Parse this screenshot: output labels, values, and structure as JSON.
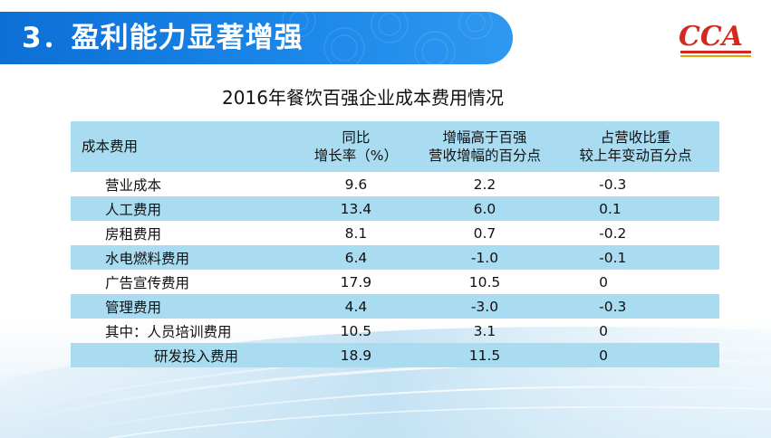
{
  "header": {
    "title": "3．盈利能力显著增强"
  },
  "logo": {
    "text": "CCA",
    "colors": {
      "text": "#d42a1e",
      "stripe_red": "#d42a1e",
      "stripe_gold": "#e0a300"
    }
  },
  "theme": {
    "banner": "#1a86e8",
    "stripe": "#a9dcf0"
  },
  "table": {
    "title": "2016年餐饮百强企业成本费用情况",
    "columns": [
      {
        "line1": "成本费用",
        "line2": ""
      },
      {
        "line1": "同比",
        "line2": "增长率（%）"
      },
      {
        "line1": "增幅高于百强",
        "line2": "营收增幅的百分点"
      },
      {
        "line1": "占营收比重",
        "line2": "较上年变动百分点"
      }
    ],
    "rows": [
      {
        "name": "营业成本",
        "growth": "9.6",
        "above": "2.2",
        "share": "-0.3"
      },
      {
        "name": "人工费用",
        "growth": "13.4",
        "above": "6.0",
        "share": "0.1"
      },
      {
        "name": "房租费用",
        "growth": "8.1",
        "above": "0.7",
        "share": "-0.2"
      },
      {
        "name": "水电燃料费用",
        "growth": "6.4",
        "above": "-1.0",
        "share": "-0.1"
      },
      {
        "name": "广告宣传费用",
        "growth": "17.9",
        "above": "10.5",
        "share": "0"
      },
      {
        "name": "管理费用",
        "growth": "4.4",
        "above": "-3.0",
        "share": "-0.3"
      },
      {
        "name": "其中：人员培训费用",
        "growth": "10.5",
        "above": "3.1",
        "share": "0"
      },
      {
        "name": "研发投入费用",
        "growth": "18.9",
        "above": "11.5",
        "share": "0"
      }
    ]
  }
}
